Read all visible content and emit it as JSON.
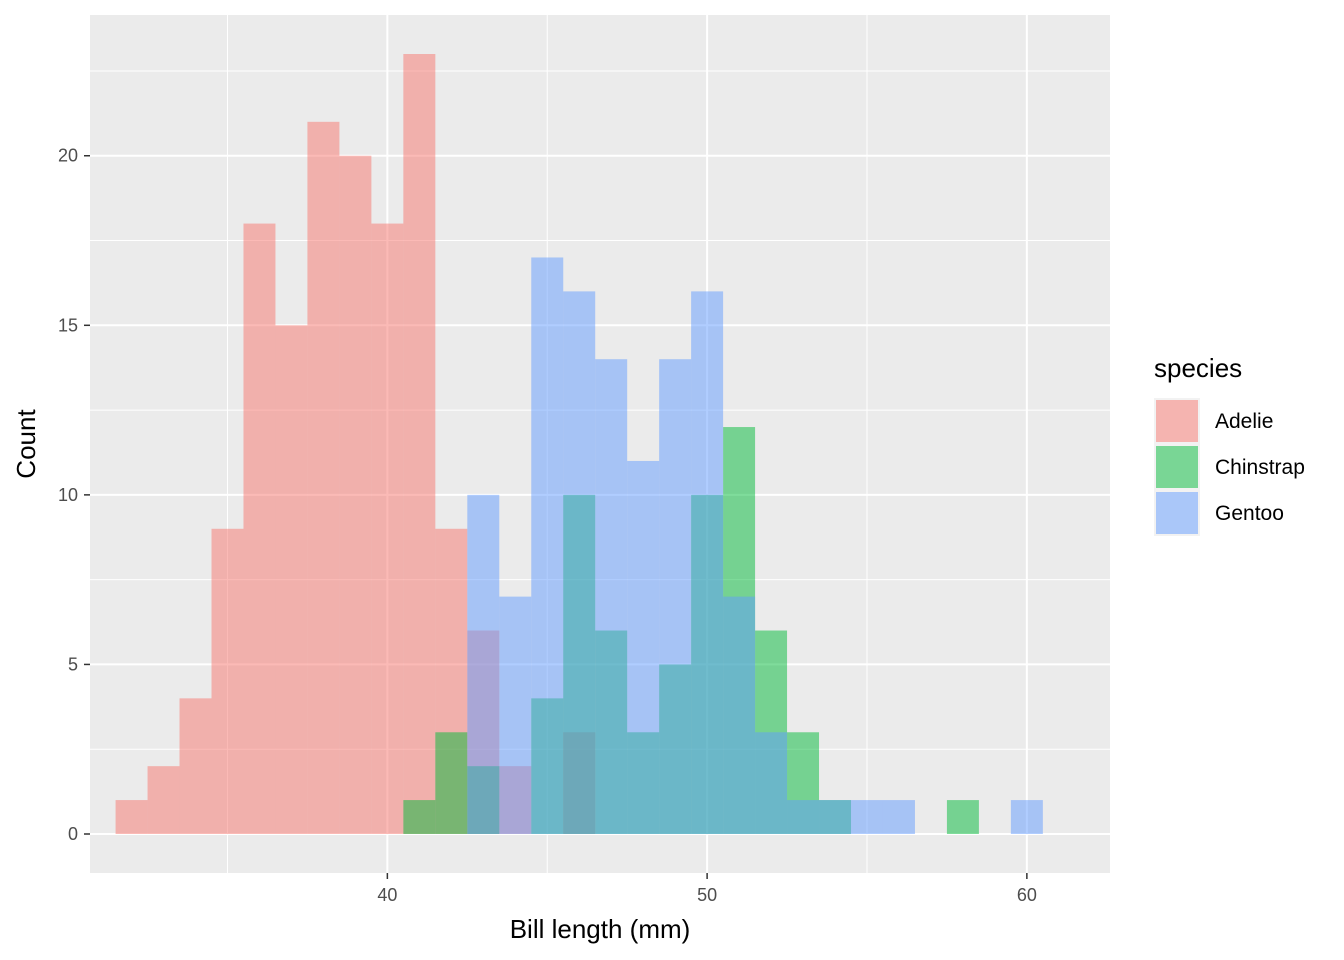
{
  "chart_data": {
    "type": "histogram",
    "xlabel": "Bill length (mm)",
    "ylabel": "Count",
    "xlim": [
      30.7,
      62.6
    ],
    "ylim": [
      -1.15,
      24.15
    ],
    "x_ticks": [
      40,
      50,
      60
    ],
    "y_ticks": [
      0,
      5,
      10,
      15,
      20
    ],
    "grid": true,
    "legend": {
      "title": "species",
      "position": "right"
    },
    "bin_width": 1,
    "categories": [
      32,
      33,
      34,
      35,
      36,
      37,
      38,
      39,
      40,
      41,
      42,
      43,
      44,
      45,
      46,
      47,
      48,
      49,
      50,
      51,
      52,
      53,
      54,
      55,
      56,
      57,
      58,
      59,
      60
    ],
    "series": [
      {
        "name": "Adelie",
        "color": "#F8766D",
        "values": [
          1,
          2,
          4,
          9,
          18,
          15,
          21,
          20,
          18,
          23,
          9,
          6,
          2,
          0,
          3,
          0,
          0,
          0,
          0,
          0,
          0,
          0,
          0,
          0,
          0,
          0,
          0,
          0,
          0
        ]
      },
      {
        "name": "Chinstrap",
        "color": "#00BA38",
        "values": [
          0,
          0,
          0,
          0,
          0,
          0,
          0,
          0,
          0,
          1,
          3,
          2,
          0,
          4,
          10,
          6,
          3,
          5,
          10,
          12,
          6,
          3,
          1,
          0,
          0,
          0,
          1,
          0,
          0
        ]
      },
      {
        "name": "Gentoo",
        "color": "#619CFF",
        "values": [
          0,
          0,
          0,
          0,
          0,
          0,
          0,
          0,
          0,
          0,
          0,
          10,
          7,
          17,
          16,
          14,
          11,
          14,
          16,
          7,
          3,
          1,
          1,
          1,
          1,
          0,
          0,
          0,
          1
        ]
      }
    ],
    "bar_opacity": 0.5
  }
}
